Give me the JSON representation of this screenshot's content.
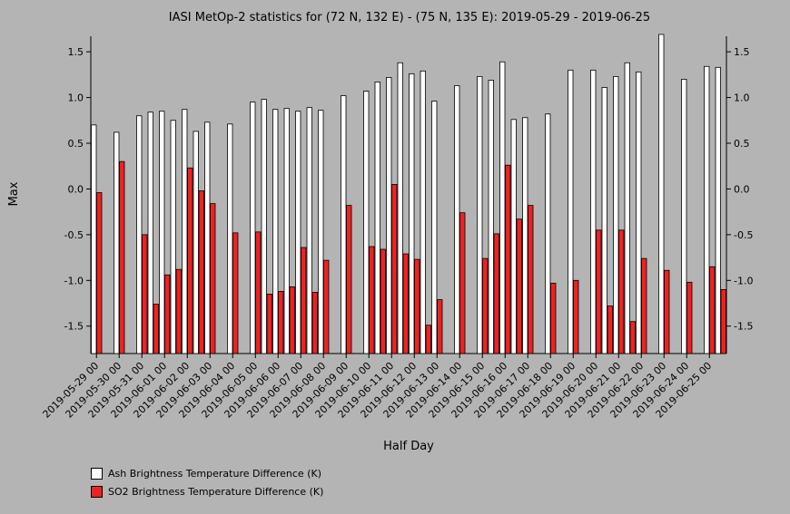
{
  "chart_data": {
    "type": "bar",
    "title": "IASI MetOp-2 statistics for (72 N, 132 E) - (75 N, 135 E): 2019-05-29 - 2019-06-25",
    "xlabel": "Half Day",
    "ylabel": "Max",
    "ylim": [
      -1.8,
      1.67
    ],
    "yticks": [
      -1.5,
      -1.0,
      -0.5,
      0.0,
      0.5,
      1.0,
      1.5
    ],
    "ytick_labels": [
      "-1.5",
      "-1.0",
      "-0.5",
      "0.0",
      "0.5",
      "1.0",
      "1.5"
    ],
    "grid": false,
    "legend_position": "bottom-left",
    "categories": [
      "2019-05-29 00",
      "2019-05-29 12",
      "2019-05-30 00",
      "2019-05-30 12",
      "2019-05-31 00",
      "2019-05-31 12",
      "2019-06-01 00",
      "2019-06-01 12",
      "2019-06-02 00",
      "2019-06-02 12",
      "2019-06-03 00",
      "2019-06-03 12",
      "2019-06-04 00",
      "2019-06-04 12",
      "2019-06-05 00",
      "2019-06-05 12",
      "2019-06-06 00",
      "2019-06-06 12",
      "2019-06-07 00",
      "2019-06-07 12",
      "2019-06-08 00",
      "2019-06-08 12",
      "2019-06-09 00",
      "2019-06-09 12",
      "2019-06-10 00",
      "2019-06-10 12",
      "2019-06-11 00",
      "2019-06-11 12",
      "2019-06-12 00",
      "2019-06-12 12",
      "2019-06-13 00",
      "2019-06-13 12",
      "2019-06-14 00",
      "2019-06-14 12",
      "2019-06-15 00",
      "2019-06-15 12",
      "2019-06-16 00",
      "2019-06-16 12",
      "2019-06-17 00",
      "2019-06-17 12",
      "2019-06-18 00",
      "2019-06-18 12",
      "2019-06-19 00",
      "2019-06-19 12",
      "2019-06-20 00",
      "2019-06-20 12",
      "2019-06-21 00",
      "2019-06-21 12",
      "2019-06-22 00",
      "2019-06-22 12",
      "2019-06-23 00",
      "2019-06-23 12",
      "2019-06-24 00",
      "2019-06-24 12",
      "2019-06-25 00",
      "2019-06-25 12"
    ],
    "tick_labels": [
      "2019-05-29 00",
      "2019-05-30 00",
      "2019-05-31 00",
      "2019-06-01 00",
      "2019-06-02 00",
      "2019-06-03 00",
      "2019-06-04 00",
      "2019-06-05 00",
      "2019-06-06 00",
      "2019-06-07 00",
      "2019-06-08 00",
      "2019-06-09 00",
      "2019-06-10 00",
      "2019-06-11 00",
      "2019-06-12 00",
      "2019-06-13 00",
      "2019-06-14 00",
      "2019-06-15 00",
      "2019-06-16 00",
      "2019-06-17 00",
      "2019-06-18 00",
      "2019-06-19 00",
      "2019-06-20 00",
      "2019-06-21 00",
      "2019-06-22 00",
      "2019-06-23 00",
      "2019-06-24 00",
      "2019-06-25 00"
    ],
    "series": [
      {
        "name": "Ash Brightness Temperature Difference (K)",
        "color": "#ffffff",
        "values": [
          0.7,
          null,
          0.62,
          null,
          0.8,
          0.84,
          0.85,
          0.75,
          0.87,
          0.63,
          0.73,
          null,
          0.71,
          null,
          0.95,
          0.98,
          0.87,
          0.88,
          0.85,
          0.89,
          0.86,
          null,
          1.02,
          null,
          1.07,
          1.17,
          1.22,
          1.38,
          1.26,
          1.29,
          0.96,
          null,
          1.13,
          null,
          1.23,
          1.19,
          1.39,
          0.76,
          0.78,
          null,
          0.82,
          null,
          1.3,
          null,
          1.3,
          1.11,
          1.23,
          1.38,
          1.28,
          null,
          1.69,
          null,
          1.2,
          null,
          1.34,
          1.33
        ]
      },
      {
        "name": "SO2 Brightness Temperature Difference (K)",
        "color": "#ee2222",
        "values": [
          -0.04,
          null,
          0.3,
          null,
          -0.5,
          -1.26,
          -0.94,
          -0.88,
          0.23,
          -0.02,
          -0.16,
          null,
          -0.48,
          null,
          -0.47,
          -1.15,
          -1.12,
          -1.07,
          -0.64,
          -1.13,
          -0.78,
          null,
          -0.18,
          null,
          -0.63,
          -0.66,
          0.05,
          -0.71,
          -0.77,
          -1.49,
          -1.21,
          null,
          -0.26,
          null,
          -0.76,
          -0.49,
          0.26,
          -0.33,
          -0.18,
          null,
          -1.03,
          null,
          -1.0,
          null,
          -0.45,
          -1.28,
          -0.45,
          -1.45,
          -0.76,
          null,
          -0.89,
          null,
          -1.02,
          null,
          -0.85,
          -1.1
        ]
      }
    ]
  }
}
